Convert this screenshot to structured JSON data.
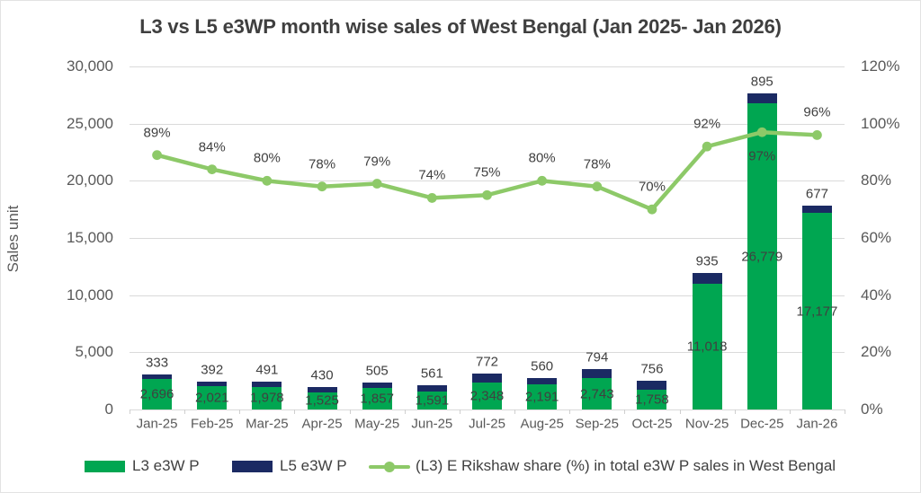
{
  "title": "L3 vs L5 e3WP month wise sales of West Bengal (Jan 2025- Jan 2026)",
  "colors": {
    "l3_bar": "#00a651",
    "l5_bar": "#1b2a63",
    "share_line": "#8dc968",
    "grid": "#dadada",
    "axis_text": "#595959",
    "data_label_text": "#404040",
    "title_text": "#3f3f3f"
  },
  "chart_data": {
    "type": "bar+line",
    "title": "L3 vs L5 e3WP month wise sales of West Bengal (Jan 2025- Jan 2026)",
    "ylabel": "Sales unit",
    "categories": [
      "Jan-25",
      "Feb-25",
      "Mar-25",
      "Apr-25",
      "May-25",
      "Jun-25",
      "Jul-25",
      "Aug-25",
      "Sep-25",
      "Oct-25",
      "Nov-25",
      "Dec-25",
      "Jan-26"
    ],
    "series": [
      {
        "name": "L3 e3W P",
        "type": "bar",
        "stack": true,
        "color": "#00a651",
        "values": [
          2696,
          2021,
          1978,
          1525,
          1857,
          1591,
          2348,
          2191,
          2743,
          1758,
          11018,
          26779,
          17177
        ]
      },
      {
        "name": "L5 e3W P",
        "type": "bar",
        "stack": true,
        "color": "#1b2a63",
        "values": [
          333,
          392,
          491,
          430,
          505,
          561,
          772,
          560,
          794,
          756,
          935,
          895,
          677
        ]
      },
      {
        "name": "(L3) E Rikshaw share (%) in total e3W P sales in West Bengal",
        "type": "line",
        "axis": "right",
        "color": "#8dc968",
        "unit": "%",
        "values": [
          89,
          84,
          80,
          78,
          79,
          74,
          75,
          80,
          78,
          70,
          92,
          97,
          96
        ]
      }
    ],
    "y_left": {
      "min": 0,
      "max": 30000,
      "step": 5000,
      "tick_labels": [
        "0",
        "5,000",
        "10,000",
        "15,000",
        "20,000",
        "25,000",
        "30,000"
      ]
    },
    "y_right": {
      "min": 0,
      "max": 120,
      "step": 20,
      "tick_labels": [
        "0%",
        "20%",
        "40%",
        "60%",
        "80%",
        "100%",
        "120%"
      ]
    },
    "grid": true,
    "legend_position": "bottom"
  }
}
